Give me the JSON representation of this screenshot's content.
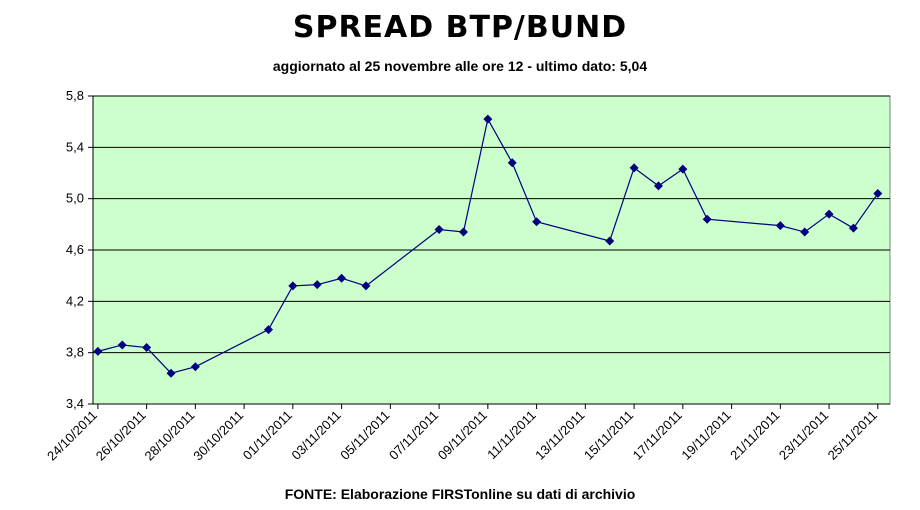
{
  "chart_data": {
    "type": "line",
    "title": "SPREAD BTP/BUND",
    "subtitle": "aggiornato al 25 novembre alle ore 12 - ultimo dato: 5,04",
    "source": "FONTE: Elaborazione FIRSTonline su dati di archivio",
    "xlabel": "",
    "ylabel": "",
    "ylim": [
      3.4,
      5.8
    ],
    "yticks": [
      "3,4",
      "3,8",
      "4,2",
      "4,6",
      "5,0",
      "5,4",
      "5,8"
    ],
    "xticks": [
      "24/10/2011",
      "26/10/2011",
      "28/10/2011",
      "30/10/2011",
      "01/11/2011",
      "03/11/2011",
      "05/11/2011",
      "07/11/2011",
      "09/11/2011",
      "11/11/2011",
      "13/11/2011",
      "15/11/2011",
      "17/11/2011",
      "19/11/2011",
      "21/11/2011",
      "23/11/2011",
      "25/11/2011"
    ],
    "grid": true,
    "plot_background": "#ccffcc",
    "line_color": "#000080",
    "marker_color": "#000080",
    "series": [
      {
        "points": [
          {
            "x": "24/10/2011",
            "y": 3.81
          },
          {
            "x": "25/10/2011",
            "y": 3.86
          },
          {
            "x": "26/10/2011",
            "y": 3.84
          },
          {
            "x": "27/10/2011",
            "y": 3.64
          },
          {
            "x": "28/10/2011",
            "y": 3.69
          },
          {
            "x": "31/10/2011",
            "y": 3.98
          },
          {
            "x": "01/11/2011",
            "y": 4.32
          },
          {
            "x": "02/11/2011",
            "y": 4.33
          },
          {
            "x": "03/11/2011",
            "y": 4.38
          },
          {
            "x": "04/11/2011",
            "y": 4.32
          },
          {
            "x": "07/11/2011",
            "y": 4.76
          },
          {
            "x": "08/11/2011",
            "y": 4.74
          },
          {
            "x": "09/11/2011",
            "y": 5.62
          },
          {
            "x": "10/11/2011",
            "y": 5.28
          },
          {
            "x": "11/11/2011",
            "y": 4.82
          },
          {
            "x": "14/11/2011",
            "y": 4.67
          },
          {
            "x": "15/11/2011",
            "y": 5.24
          },
          {
            "x": "16/11/2011",
            "y": 5.1
          },
          {
            "x": "17/11/2011",
            "y": 5.23
          },
          {
            "x": "18/11/2011",
            "y": 4.84
          },
          {
            "x": "21/11/2011",
            "y": 4.79
          },
          {
            "x": "22/11/2011",
            "y": 4.74
          },
          {
            "x": "23/11/2011",
            "y": 4.88
          },
          {
            "x": "24/11/2011",
            "y": 4.77
          },
          {
            "x": "25/11/2011",
            "y": 5.04
          }
        ]
      }
    ]
  }
}
